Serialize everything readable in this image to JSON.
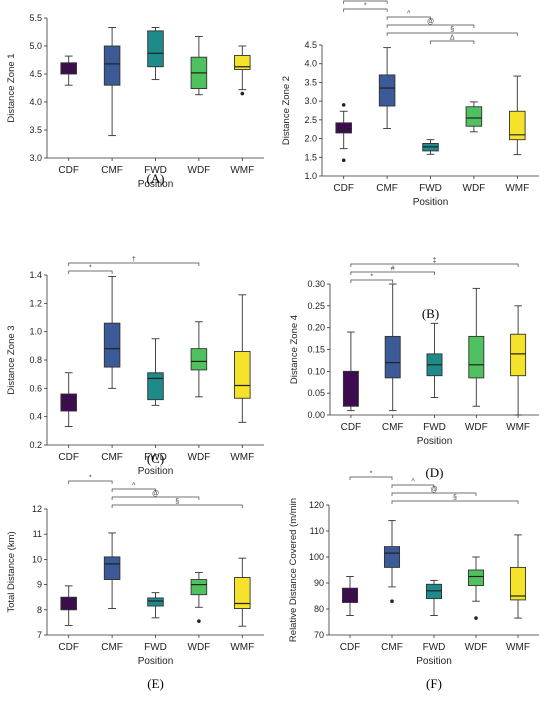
{
  "colors": {
    "CDF": "#3e0a52",
    "CMF": "#3b5a97",
    "FWD": "#1e8a8a",
    "WDF": "#4fc25f",
    "WMF": "#f5e22a",
    "stroke": "#333333"
  },
  "chart_data": [
    {
      "type": "box",
      "panel": "(A)",
      "ylabel": "Distance Zone 1",
      "xlabel": "Position",
      "categories": [
        "CDF",
        "CMF",
        "FWD",
        "WDF",
        "WMF"
      ],
      "ylim": [
        3.0,
        5.5
      ],
      "yticks": [
        "3.0",
        "3.5",
        "4.0",
        "4.5",
        "5.0",
        "5.5"
      ],
      "boxes": [
        {
          "min": 4.3,
          "q1": 4.5,
          "median": 4.6,
          "q3": 4.7,
          "max": 4.82,
          "outliers": []
        },
        {
          "min": 3.4,
          "q1": 4.3,
          "median": 4.68,
          "q3": 5.0,
          "max": 5.33,
          "outliers": []
        },
        {
          "min": 4.4,
          "q1": 4.63,
          "median": 4.87,
          "q3": 5.27,
          "max": 5.33,
          "outliers": []
        },
        {
          "min": 4.13,
          "q1": 4.24,
          "median": 4.52,
          "q3": 4.8,
          "max": 5.17,
          "outliers": []
        },
        {
          "min": 4.22,
          "q1": 4.58,
          "median": 4.63,
          "q3": 4.83,
          "max": 5.0,
          "outliers": [
            4.15
          ]
        }
      ],
      "sig": []
    },
    {
      "type": "box",
      "panel": "(B)",
      "ylabel": "Distance Zone 2",
      "xlabel": "Position",
      "categories": [
        "CDF",
        "CMF",
        "FWD",
        "WDF",
        "WMF"
      ],
      "ylim": [
        1.0,
        4.5
      ],
      "yticks": [
        "1.0",
        "1.5",
        "2.0",
        "2.5",
        "3.0",
        "3.5",
        "4.0",
        "4.5"
      ],
      "boxes": [
        {
          "min": 1.73,
          "q1": 2.15,
          "median": 2.27,
          "q3": 2.42,
          "max": 2.73,
          "outliers": [
            2.9,
            1.42
          ]
        },
        {
          "min": 2.27,
          "q1": 2.87,
          "median": 3.35,
          "q3": 3.7,
          "max": 4.43,
          "outliers": []
        },
        {
          "min": 1.58,
          "q1": 1.67,
          "median": 1.78,
          "q3": 1.87,
          "max": 1.97,
          "outliers": []
        },
        {
          "min": 2.18,
          "q1": 2.33,
          "median": 2.55,
          "q3": 2.85,
          "max": 2.98,
          "outliers": []
        },
        {
          "min": 1.57,
          "q1": 1.97,
          "median": 2.1,
          "q3": 2.73,
          "max": 3.67,
          "outliers": []
        }
      ],
      "sig": [
        {
          "from": 0,
          "to": 1,
          "label": "#",
          "level": 5
        },
        {
          "from": 0,
          "to": 1,
          "label": "*",
          "level": 4
        },
        {
          "from": 1,
          "to": 2,
          "label": "^",
          "level": 3
        },
        {
          "from": 1,
          "to": 3,
          "label": "@",
          "level": 2
        },
        {
          "from": 1,
          "to": 4,
          "label": "§",
          "level": 1
        },
        {
          "from": 2,
          "to": 3,
          "label": "Δ",
          "level": 0
        }
      ]
    },
    {
      "type": "box",
      "panel": "(C)",
      "ylabel": "Distance Zone 3",
      "xlabel": "Position",
      "categories": [
        "CDF",
        "CMF",
        "FWD",
        "WDF",
        "WMF"
      ],
      "ylim": [
        0.2,
        1.4
      ],
      "yticks": [
        "0.2",
        "0.4",
        "0.6",
        "0.8",
        "1.0",
        "1.2",
        "1.4"
      ],
      "boxes": [
        {
          "min": 0.33,
          "q1": 0.44,
          "median": 0.5,
          "q3": 0.56,
          "max": 0.71,
          "outliers": []
        },
        {
          "min": 0.6,
          "q1": 0.75,
          "median": 0.88,
          "q3": 1.06,
          "max": 1.39,
          "outliers": []
        },
        {
          "min": 0.48,
          "q1": 0.52,
          "median": 0.67,
          "q3": 0.71,
          "max": 0.95,
          "outliers": []
        },
        {
          "min": 0.54,
          "q1": 0.73,
          "median": 0.79,
          "q3": 0.88,
          "max": 1.07,
          "outliers": []
        },
        {
          "min": 0.36,
          "q1": 0.53,
          "median": 0.62,
          "q3": 0.86,
          "max": 1.26,
          "outliers": []
        }
      ],
      "sig": [
        {
          "from": 0,
          "to": 1,
          "label": "*",
          "level": 0
        },
        {
          "from": 0,
          "to": 3,
          "label": "†",
          "level": 1
        }
      ]
    },
    {
      "type": "box",
      "panel": "(D)",
      "ylabel": "Distance Zone 4",
      "xlabel": "Position",
      "categories": [
        "CDF",
        "CMF",
        "FWD",
        "WDF",
        "WMF"
      ],
      "ylim": [
        0.0,
        0.3
      ],
      "yticks": [
        "0.00",
        "0.05",
        "0.10",
        "0.15",
        "0.20",
        "0.25",
        "0.30"
      ],
      "boxes": [
        {
          "min": 0.01,
          "q1": 0.02,
          "median": 0.045,
          "q3": 0.1,
          "max": 0.19,
          "outliers": []
        },
        {
          "min": 0.01,
          "q1": 0.085,
          "median": 0.12,
          "q3": 0.18,
          "max": 0.3,
          "outliers": []
        },
        {
          "min": 0.04,
          "q1": 0.09,
          "median": 0.115,
          "q3": 0.14,
          "max": 0.21,
          "outliers": []
        },
        {
          "min": 0.02,
          "q1": 0.085,
          "median": 0.115,
          "q3": 0.18,
          "max": 0.29,
          "outliers": []
        },
        {
          "min": 0.0,
          "q1": 0.09,
          "median": 0.14,
          "q3": 0.185,
          "max": 0.25,
          "outliers": []
        }
      ],
      "sig": [
        {
          "from": 0,
          "to": 1,
          "label": "*",
          "level": 0
        },
        {
          "from": 0,
          "to": 2,
          "label": "#",
          "level": 1
        },
        {
          "from": 0,
          "to": 4,
          "label": "‡",
          "level": 2
        }
      ]
    },
    {
      "type": "box",
      "panel": "(E)",
      "ylabel": "Total Distance (km)",
      "xlabel": "Position",
      "categories": [
        "CDF",
        "CMF",
        "FWD",
        "WDF",
        "WMF"
      ],
      "ylim": [
        7,
        12
      ],
      "yticks": [
        "7",
        "8",
        "9",
        "10",
        "11",
        "12"
      ],
      "boxes": [
        {
          "min": 7.38,
          "q1": 8.0,
          "median": 8.25,
          "q3": 8.5,
          "max": 8.95,
          "outliers": []
        },
        {
          "min": 8.05,
          "q1": 9.2,
          "median": 9.82,
          "q3": 10.1,
          "max": 11.05,
          "outliers": []
        },
        {
          "min": 7.68,
          "q1": 8.15,
          "median": 8.35,
          "q3": 8.47,
          "max": 8.68,
          "outliers": []
        },
        {
          "min": 8.1,
          "q1": 8.6,
          "median": 9.0,
          "q3": 9.2,
          "max": 9.48,
          "outliers": [
            7.55
          ]
        },
        {
          "min": 7.35,
          "q1": 8.05,
          "median": 8.25,
          "q3": 9.28,
          "max": 10.05,
          "outliers": []
        }
      ],
      "sig": [
        {
          "from": 0,
          "to": 1,
          "label": "*",
          "level": 3
        },
        {
          "from": 1,
          "to": 2,
          "label": "^",
          "level": 2
        },
        {
          "from": 1,
          "to": 3,
          "label": "@",
          "level": 1
        },
        {
          "from": 1,
          "to": 4,
          "label": "§",
          "level": 0
        }
      ]
    },
    {
      "type": "box",
      "panel": "(F)",
      "ylabel": "Relative Distance Covered (m/min",
      "xlabel": "Position",
      "categories": [
        "CDF",
        "CMF",
        "FWD",
        "WDF",
        "WMF"
      ],
      "ylim": [
        70,
        120
      ],
      "yticks": [
        "70",
        "80",
        "90",
        "100",
        "110",
        "120"
      ],
      "boxes": [
        {
          "min": 77.5,
          "q1": 82.5,
          "median": 85.5,
          "q3": 88.0,
          "max": 92.5,
          "outliers": []
        },
        {
          "min": 88.5,
          "q1": 96.0,
          "median": 101.5,
          "q3": 104.0,
          "max": 114.0,
          "outliers": [
            83.0
          ]
        },
        {
          "min": 77.5,
          "q1": 84.0,
          "median": 87.0,
          "q3": 89.5,
          "max": 91.0,
          "outliers": []
        },
        {
          "min": 83.0,
          "q1": 89.0,
          "median": 92.5,
          "q3": 95.0,
          "max": 100.0,
          "outliers": [
            76.5
          ]
        },
        {
          "min": 76.5,
          "q1": 83.5,
          "median": 85.0,
          "q3": 96.0,
          "max": 108.5,
          "outliers": []
        }
      ],
      "sig": [
        {
          "from": 0,
          "to": 1,
          "label": "*",
          "level": 3
        },
        {
          "from": 1,
          "to": 2,
          "label": "^",
          "level": 2
        },
        {
          "from": 1,
          "to": 3,
          "label": "@",
          "level": 1
        },
        {
          "from": 1,
          "to": 4,
          "label": "§",
          "level": 0
        }
      ]
    }
  ]
}
